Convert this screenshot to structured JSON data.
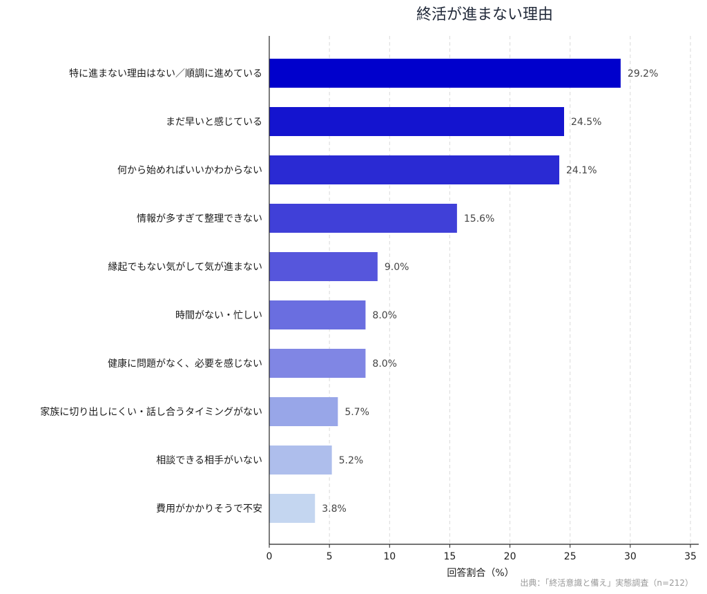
{
  "chart_data": {
    "type": "bar",
    "orientation": "horizontal",
    "title": "終活が進まない理由",
    "xlabel": "回答割合（%）",
    "ylabel": "",
    "xlim": [
      0,
      35
    ],
    "xticks": [
      0,
      5,
      10,
      15,
      20,
      25,
      30,
      35
    ],
    "grid": "vertical-dashed",
    "categories": [
      "特に進まない理由はない／順調に進めている",
      "まだ早いと感じている",
      "何から始めればいいかわからない",
      "情報が多すぎて整理できない",
      "縁起でもない気がして気が進まない",
      "時間がない・忙しい",
      "健康に問題がなく、必要を感じない",
      "家族に切り出しにくい・話し合うタイミングがない",
      "相談できる相手がいない",
      "費用がかかりそうで不安"
    ],
    "values": [
      29.2,
      24.5,
      24.1,
      15.6,
      9.0,
      8.0,
      8.0,
      5.7,
      5.2,
      3.8
    ],
    "value_labels": [
      "29.2%",
      "24.5%",
      "24.1%",
      "15.6%",
      "9.0%",
      "8.0%",
      "8.0%",
      "5.7%",
      "5.2%",
      "3.8%"
    ],
    "colors": [
      "#0000cc",
      "#1414cf",
      "#2a2ad3",
      "#4040d8",
      "#5656dc",
      "#6a6ee0",
      "#8086e4",
      "#98a6e8",
      "#aebeec",
      "#c4d6f0"
    ],
    "source": "出典：「終活意識と備え」実態調査（n=212）"
  }
}
